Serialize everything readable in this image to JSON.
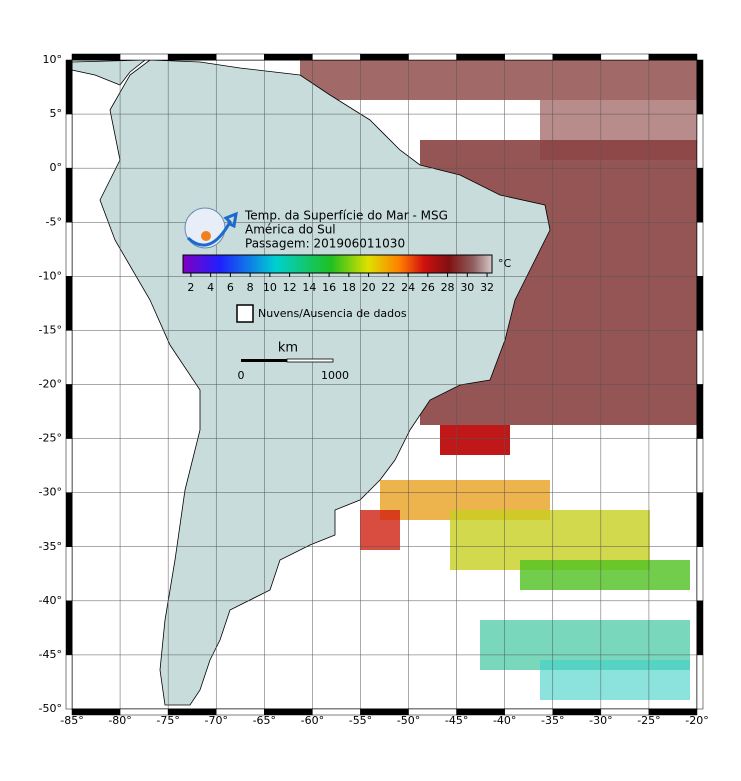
{
  "map": {
    "title_lines": [
      "Temp. da Superfície do Mar - MSG",
      "América do Sul",
      "Passagem: 201906011030"
    ],
    "colorbar": {
      "unit": "°C",
      "lim": [
        1.2,
        32.5
      ],
      "ticks": [
        2,
        4,
        6,
        8,
        10,
        12,
        14,
        16,
        18,
        20,
        22,
        24,
        26,
        28,
        30,
        32
      ]
    },
    "legend": "Nuvens/Ausencia de dados",
    "scale": {
      "unit": "km",
      "ticks": [
        0,
        1000
      ]
    },
    "lon_range": [
      -85,
      -20
    ],
    "lat_range": [
      -50,
      10
    ],
    "lon_ticks": [
      {
        "value": -85,
        "label": "-85°"
      },
      {
        "value": -80,
        "label": "-80°"
      },
      {
        "value": -75,
        "label": "-75°"
      },
      {
        "value": -70,
        "label": "-70°"
      },
      {
        "value": -65,
        "label": "-65°"
      },
      {
        "value": -60,
        "label": "-60°"
      },
      {
        "value": -55,
        "label": "-55°"
      },
      {
        "value": -50,
        "label": "-50°"
      },
      {
        "value": -45,
        "label": "-45°"
      },
      {
        "value": -40,
        "label": "-40°"
      },
      {
        "value": -35,
        "label": "-35°"
      },
      {
        "value": -30,
        "label": "-30°"
      },
      {
        "value": -25,
        "label": "-25°"
      },
      {
        "value": -20,
        "label": "-20°"
      }
    ],
    "lat_ticks": [
      {
        "value": 10,
        "label": "10°"
      },
      {
        "value": 5,
        "label": "5°"
      },
      {
        "value": 0,
        "label": "0°"
      },
      {
        "value": -5,
        "label": "-5°"
      },
      {
        "value": -10,
        "label": "-10°"
      },
      {
        "value": -15,
        "label": "-15°"
      },
      {
        "value": -20,
        "label": "-20°"
      },
      {
        "value": -25,
        "label": "-25°"
      },
      {
        "value": -30,
        "label": "-30°"
      },
      {
        "value": -35,
        "label": "-35°"
      },
      {
        "value": -40,
        "label": "-40°"
      },
      {
        "value": -45,
        "label": "-45°"
      },
      {
        "value": -50,
        "label": "-50°"
      }
    ]
  }
}
